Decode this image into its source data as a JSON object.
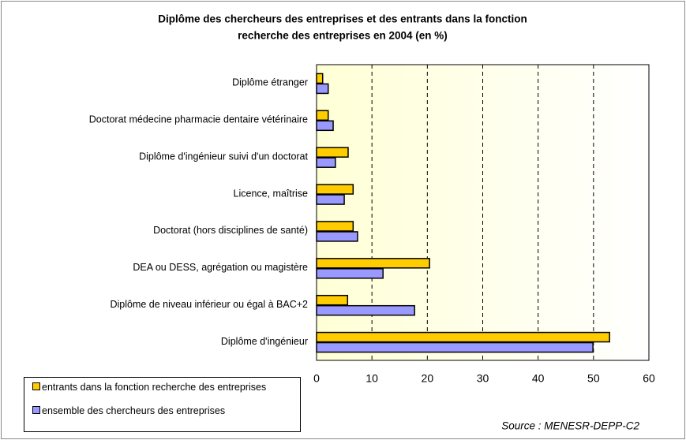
{
  "chart_data": {
    "type": "hbar",
    "title": [
      "Diplôme des chercheurs des entreprises et des entrants dans la fonction",
      "recherche des entreprises en 2004 (en %)"
    ],
    "categories": [
      "Diplôme étranger",
      "Doctorat médecine pharmacie dentaire vétérinaire",
      "Diplôme d'ingénieur suivi d'un doctorat",
      "Licence, maîtrise",
      "Doctorat (hors disciplines de santé)",
      "DEA ou DESS, agrégation ou magistère",
      "Diplôme de niveau inférieur ou égal à BAC+2",
      "Diplôme d'ingénieur"
    ],
    "series": [
      {
        "name": "entrants dans la fonction recherche des entreprises",
        "color": "#ffcc00",
        "values": [
          1.1,
          2.1,
          5.7,
          6.6,
          6.6,
          20.4,
          5.6,
          52.9
        ]
      },
      {
        "name": "ensemble des chercheurs des entreprises",
        "color": "#9999ff",
        "values": [
          2.1,
          3.0,
          3.4,
          5.0,
          7.4,
          12.0,
          17.7,
          49.9
        ]
      }
    ],
    "xlim": [
      0,
      60
    ],
    "xticks": [
      0,
      10,
      20,
      30,
      40,
      50,
      60
    ],
    "grid": true,
    "source": "Source : MENESR-DEPP-C2"
  }
}
